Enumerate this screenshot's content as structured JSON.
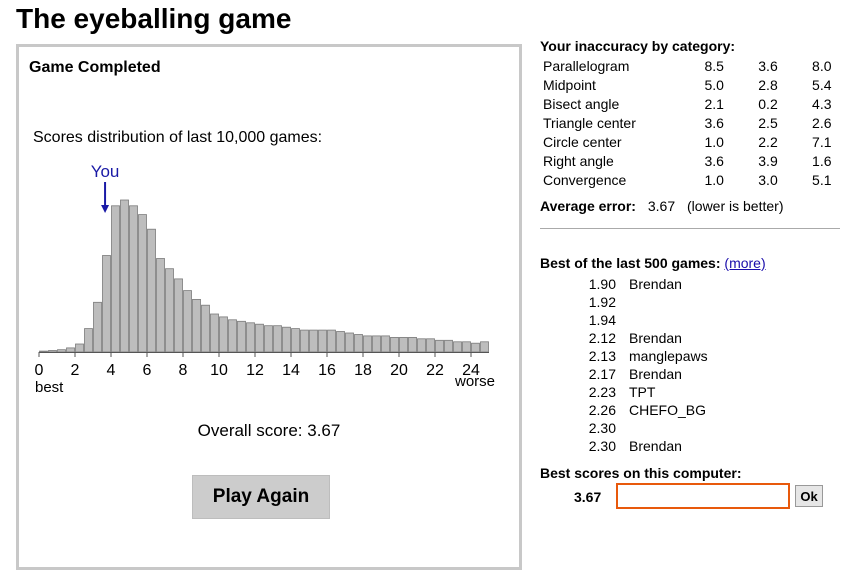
{
  "page_title": "The eyeballing game",
  "game": {
    "status": "Game Completed",
    "distribution_label": "Scores distribution of last 10,000 games:",
    "you_label": "You",
    "you_score": 3.67,
    "overall_label": "Overall score:",
    "overall_score": "3.67",
    "play_again_label": "Play Again"
  },
  "chart_data": {
    "type": "bar",
    "x_ticks": [
      "0",
      "2",
      "4",
      "6",
      "8",
      "10",
      "12",
      "14",
      "16",
      "18",
      "20",
      "22",
      "24"
    ],
    "x_tick_values": [
      0,
      2,
      4,
      6,
      8,
      10,
      12,
      14,
      16,
      18,
      20,
      22,
      24
    ],
    "xlim": [
      0,
      25
    ],
    "bin_width": 0.5,
    "left_end_label": "best",
    "right_end_label": "worse",
    "bar_color": "#bdbdbd",
    "values": [
      0.6,
      1,
      1.6,
      2.8,
      5.5,
      16,
      34,
      66,
      100,
      104,
      100,
      94,
      84,
      64,
      57,
      50,
      42,
      36,
      32,
      26,
      24,
      22,
      21,
      20,
      19,
      18,
      18,
      17,
      16,
      15,
      15,
      15,
      15,
      14,
      13,
      12,
      11,
      11,
      11,
      10,
      10,
      10,
      9,
      9,
      8,
      8,
      7,
      7,
      6,
      7
    ]
  },
  "inaccuracy": {
    "heading": "Your inaccuracy by category:",
    "rows": [
      {
        "name": "Parallelogram",
        "values": [
          "8.5",
          "3.6",
          "8.0"
        ]
      },
      {
        "name": "Midpoint",
        "values": [
          "5.0",
          "2.8",
          "5.4"
        ]
      },
      {
        "name": "Bisect angle",
        "values": [
          "2.1",
          "0.2",
          "4.3"
        ]
      },
      {
        "name": "Triangle center",
        "values": [
          "3.6",
          "2.5",
          "2.6"
        ]
      },
      {
        "name": "Circle center",
        "values": [
          "1.0",
          "2.2",
          "7.1"
        ]
      },
      {
        "name": "Right angle",
        "values": [
          "3.6",
          "3.9",
          "1.6"
        ]
      },
      {
        "name": "Convergence",
        "values": [
          "1.0",
          "3.0",
          "5.1"
        ]
      }
    ],
    "average_label": "Average error:",
    "average_value": "3.67",
    "average_note": "(lower is better)"
  },
  "leaderboard": {
    "heading": "Best of the last 500 games:",
    "more_label": "(more)",
    "entries": [
      {
        "score": "1.90",
        "name": "Brendan"
      },
      {
        "score": "1.92",
        "name": ""
      },
      {
        "score": "1.94",
        "name": ""
      },
      {
        "score": "2.12",
        "name": "Brendan"
      },
      {
        "score": "2.13",
        "name": "manglepaws"
      },
      {
        "score": "2.17",
        "name": "Brendan"
      },
      {
        "score": "2.23",
        "name": "TPT"
      },
      {
        "score": "2.26",
        "name": "CHEFO_BG"
      },
      {
        "score": "2.30",
        "name": ""
      },
      {
        "score": "2.30",
        "name": "Brendan"
      }
    ]
  },
  "local": {
    "heading": "Best scores on this computer:",
    "score": "3.67",
    "name_value": "",
    "ok_label": "Ok"
  }
}
